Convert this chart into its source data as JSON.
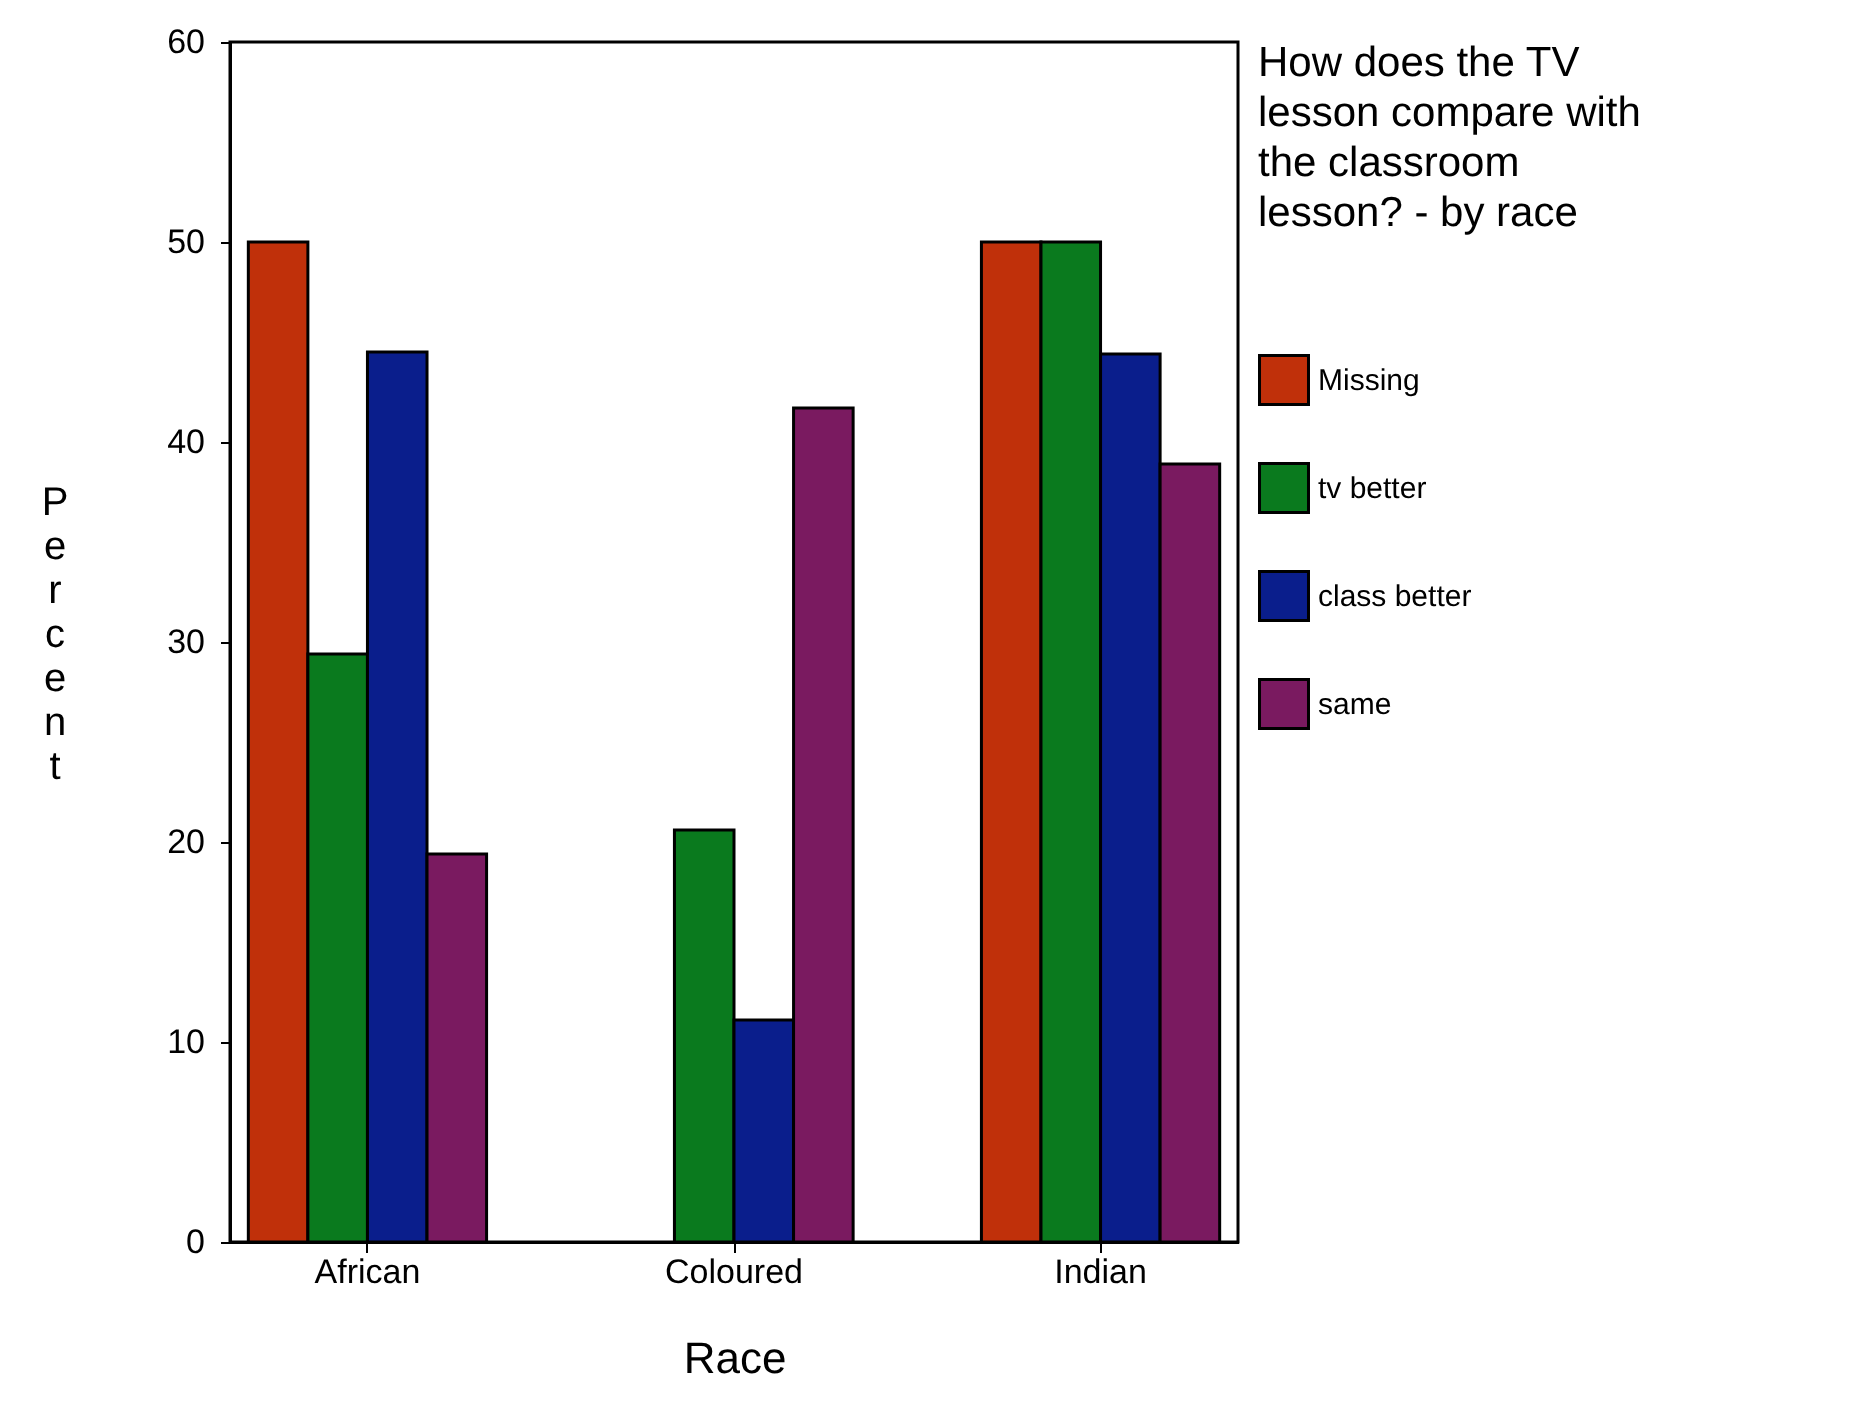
{
  "chart_data": {
    "type": "bar",
    "xlabel": "Race",
    "ylabel": "Percent",
    "legend_title": "How does the TV lesson compare with the classroom lesson? - by race",
    "categories": [
      "African",
      "Coloured",
      "Indian"
    ],
    "series": [
      {
        "name": "Missing",
        "color": "#c0300a",
        "values": [
          50,
          null,
          50
        ]
      },
      {
        "name": "tv better",
        "color": "#0a7a1e",
        "values": [
          29.4,
          20.6,
          50
        ]
      },
      {
        "name": "class better",
        "color": "#0a1e8c",
        "values": [
          44.5,
          11.1,
          44.4
        ]
      },
      {
        "name": "same",
        "color": "#7a1a60",
        "values": [
          19.4,
          41.7,
          38.9
        ]
      }
    ],
    "ylim": [
      0,
      60
    ],
    "yticks": [
      0,
      10,
      20,
      30,
      40,
      50,
      60
    ],
    "grid": false,
    "legend": "right"
  }
}
